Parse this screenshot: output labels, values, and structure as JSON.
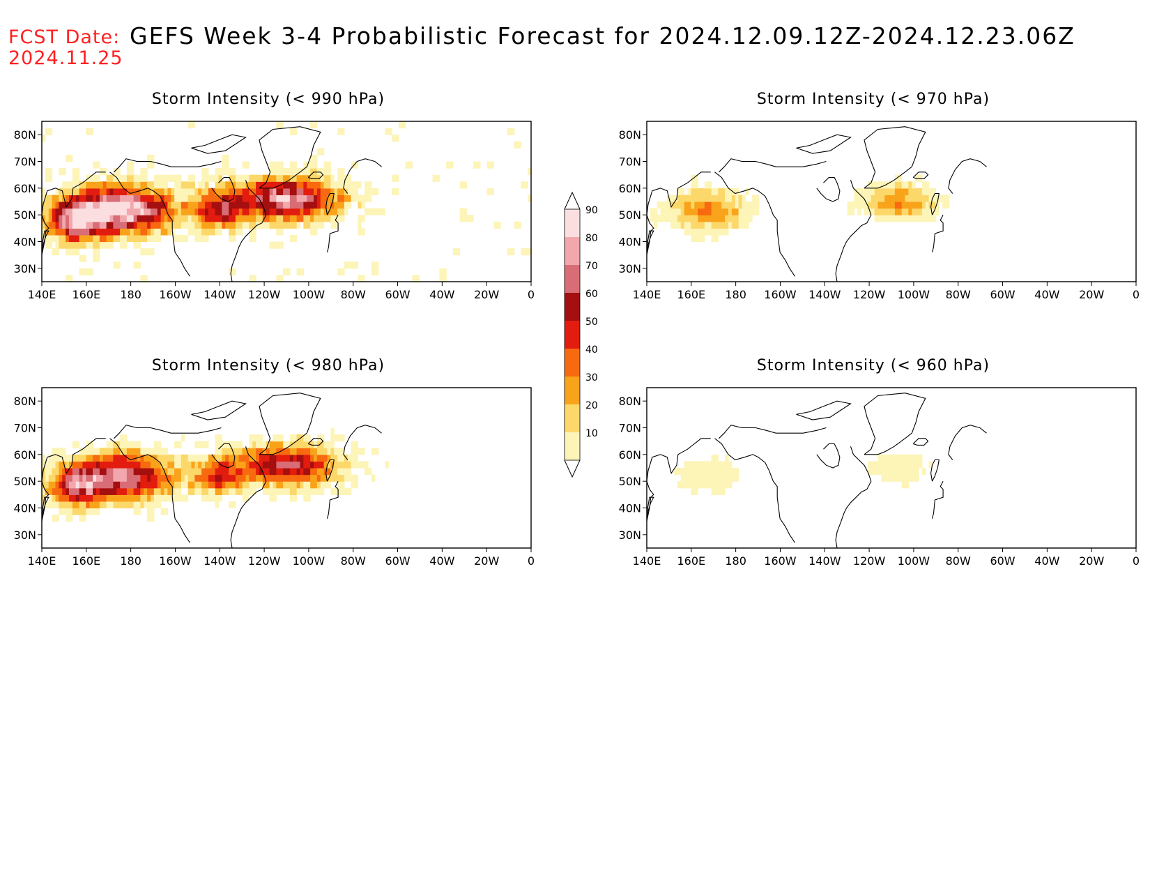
{
  "header": {
    "fcst_label": "FCST Date:",
    "fcst_date": "2024.11.25",
    "title": "GEFS Week 3-4 Probabilistic Forecast for 2024.12.09.12Z-2024.12.23.06Z"
  },
  "x_ticks": [
    "140E",
    "160E",
    "180",
    "160W",
    "140W",
    "120W",
    "100W",
    "80W",
    "60W",
    "40W",
    "20W",
    "0"
  ],
  "y_ticks": [
    "80N",
    "70N",
    "60N",
    "50N",
    "40N",
    "30N"
  ],
  "colorbar": {
    "levels": [
      "90",
      "80",
      "70",
      "60",
      "50",
      "40",
      "30",
      "20",
      "10"
    ],
    "colors": [
      "#fbdfe0",
      "#f2a7ad",
      "#d96d76",
      "#a50f0f",
      "#e21c0e",
      "#f86a0f",
      "#f9a31b",
      "#fcd86a",
      "#fdf4b8"
    ]
  },
  "panels": [
    {
      "id": "p990",
      "title": "Storm Intensity (< 990 hPa)",
      "intensity": 1.0
    },
    {
      "id": "p970",
      "title": "Storm Intensity (< 970 hPa)",
      "intensity": 0.55
    },
    {
      "id": "p980",
      "title": "Storm Intensity (< 980 hPa)",
      "intensity": 0.8
    },
    {
      "id": "p960",
      "title": "Storm Intensity (< 960 hPa)",
      "intensity": 0.25
    }
  ]
}
